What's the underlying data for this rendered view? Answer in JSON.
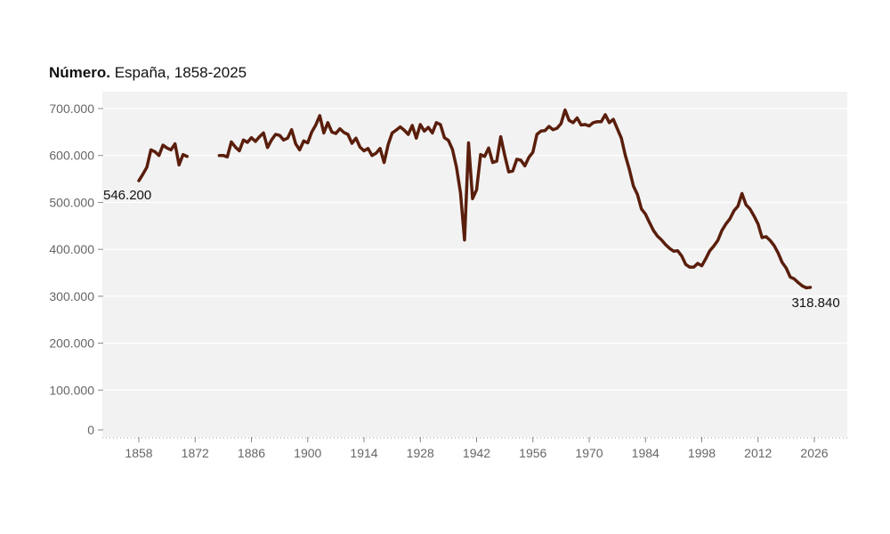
{
  "title": {
    "bold": "Número.",
    "rest": "España, 1858-2025"
  },
  "chart_data": {
    "type": "line",
    "title": "Número. España, 1858-2025",
    "xlabel": "",
    "ylabel": "",
    "xlim": [
      1850,
      2030
    ],
    "ylim": [
      0,
      720000
    ],
    "x_ticks": [
      1858,
      1872,
      1886,
      1900,
      1914,
      1928,
      1942,
      1956,
      1970,
      1984,
      1998,
      2012,
      2026
    ],
    "y_ticks": [
      {
        "value": 0,
        "label": "0"
      },
      {
        "value": 100000,
        "label": "100.000"
      },
      {
        "value": 200000,
        "label": "200.000"
      },
      {
        "value": 300000,
        "label": "300.000"
      },
      {
        "value": 400000,
        "label": "400.000"
      },
      {
        "value": 500000,
        "label": "500.000"
      },
      {
        "value": 600000,
        "label": "600.000"
      },
      {
        "value": 700000,
        "label": "700.000"
      }
    ],
    "grid": true,
    "line_color": "#5a1e0c",
    "background": "#f2f2f2",
    "start_label": "546.200",
    "end_label": "318.840",
    "segments": [
      [
        [
          1858,
          546200
        ],
        [
          1859,
          560000
        ],
        [
          1860,
          575000
        ],
        [
          1861,
          612000
        ],
        [
          1862,
          608000
        ],
        [
          1863,
          600000
        ],
        [
          1864,
          622000
        ],
        [
          1865,
          616000
        ],
        [
          1866,
          612000
        ],
        [
          1867,
          625000
        ],
        [
          1868,
          580000
        ],
        [
          1869,
          602000
        ],
        [
          1870,
          598000
        ]
      ],
      [
        [
          1878,
          600000
        ],
        [
          1879,
          600000
        ],
        [
          1880,
          597000
        ],
        [
          1881,
          629000
        ],
        [
          1882,
          618000
        ],
        [
          1883,
          610000
        ],
        [
          1884,
          633000
        ],
        [
          1885,
          628000
        ],
        [
          1886,
          638000
        ],
        [
          1887,
          630000
        ],
        [
          1888,
          640000
        ],
        [
          1889,
          648000
        ],
        [
          1890,
          617000
        ],
        [
          1891,
          633000
        ],
        [
          1892,
          645000
        ],
        [
          1893,
          643000
        ],
        [
          1894,
          633000
        ],
        [
          1895,
          637000
        ],
        [
          1896,
          655000
        ],
        [
          1897,
          625000
        ],
        [
          1898,
          612000
        ],
        [
          1899,
          631000
        ],
        [
          1900,
          627000
        ],
        [
          1901,
          650000
        ],
        [
          1902,
          665000
        ],
        [
          1903,
          685000
        ],
        [
          1904,
          648000
        ],
        [
          1905,
          670000
        ],
        [
          1906,
          650000
        ],
        [
          1907,
          647000
        ],
        [
          1908,
          657000
        ],
        [
          1909,
          649000
        ],
        [
          1910,
          645000
        ],
        [
          1911,
          626000
        ],
        [
          1912,
          637000
        ],
        [
          1913,
          618000
        ],
        [
          1914,
          610000
        ],
        [
          1915,
          615000
        ],
        [
          1916,
          600000
        ],
        [
          1917,
          605000
        ],
        [
          1918,
          615000
        ],
        [
          1919,
          585000
        ],
        [
          1920,
          623000
        ],
        [
          1921,
          648000
        ],
        [
          1922,
          654000
        ],
        [
          1923,
          661000
        ],
        [
          1924,
          654000
        ],
        [
          1925,
          645000
        ],
        [
          1926,
          664000
        ],
        [
          1927,
          637000
        ],
        [
          1928,
          666000
        ],
        [
          1929,
          652000
        ],
        [
          1930,
          660000
        ],
        [
          1931,
          648000
        ],
        [
          1932,
          670000
        ],
        [
          1933,
          666000
        ],
        [
          1934,
          638000
        ],
        [
          1935,
          632000
        ],
        [
          1936,
          613000
        ],
        [
          1937,
          575000
        ],
        [
          1938,
          520000
        ],
        [
          1939,
          420000
        ],
        [
          1940,
          627000
        ],
        [
          1941,
          508000
        ],
        [
          1942,
          527000
        ],
        [
          1943,
          602000
        ],
        [
          1944,
          598000
        ],
        [
          1945,
          616000
        ],
        [
          1946,
          585000
        ],
        [
          1947,
          588000
        ],
        [
          1948,
          640000
        ],
        [
          1949,
          600000
        ],
        [
          1950,
          565000
        ],
        [
          1951,
          567000
        ],
        [
          1952,
          592000
        ],
        [
          1953,
          590000
        ],
        [
          1954,
          578000
        ],
        [
          1955,
          596000
        ],
        [
          1956,
          607000
        ],
        [
          1957,
          645000
        ],
        [
          1958,
          652000
        ],
        [
          1959,
          653000
        ],
        [
          1960,
          662000
        ],
        [
          1961,
          655000
        ],
        [
          1962,
          658000
        ],
        [
          1963,
          668000
        ],
        [
          1964,
          697000
        ],
        [
          1965,
          675000
        ],
        [
          1966,
          670000
        ],
        [
          1967,
          680000
        ],
        [
          1968,
          665000
        ],
        [
          1969,
          666000
        ],
        [
          1970,
          663000
        ],
        [
          1971,
          670000
        ],
        [
          1972,
          672000
        ],
        [
          1973,
          672000
        ],
        [
          1974,
          687000
        ],
        [
          1975,
          670000
        ],
        [
          1976,
          677000
        ],
        [
          1977,
          657000
        ],
        [
          1978,
          637000
        ],
        [
          1979,
          600000
        ],
        [
          1980,
          570000
        ],
        [
          1981,
          535000
        ],
        [
          1982,
          517000
        ],
        [
          1983,
          486000
        ],
        [
          1984,
          475000
        ],
        [
          1985,
          457000
        ],
        [
          1986,
          440000
        ],
        [
          1987,
          428000
        ],
        [
          1988,
          420000
        ],
        [
          1989,
          410000
        ],
        [
          1990,
          402000
        ],
        [
          1991,
          396000
        ],
        [
          1992,
          397000
        ],
        [
          1993,
          386000
        ],
        [
          1994,
          368000
        ],
        [
          1995,
          362000
        ],
        [
          1996,
          362000
        ],
        [
          1997,
          370000
        ],
        [
          1998,
          365000
        ],
        [
          1999,
          380000
        ],
        [
          2000,
          397000
        ],
        [
          2001,
          407000
        ],
        [
          2002,
          419000
        ],
        [
          2003,
          440000
        ],
        [
          2004,
          454000
        ],
        [
          2005,
          465000
        ],
        [
          2006,
          482000
        ],
        [
          2007,
          492000
        ],
        [
          2008,
          519000
        ],
        [
          2009,
          495000
        ],
        [
          2010,
          486000
        ],
        [
          2011,
          471000
        ],
        [
          2012,
          454000
        ],
        [
          2013,
          425000
        ],
        [
          2014,
          427000
        ],
        [
          2015,
          419000
        ],
        [
          2016,
          408000
        ],
        [
          2017,
          392000
        ],
        [
          2018,
          372000
        ],
        [
          2019,
          360000
        ],
        [
          2020,
          341000
        ],
        [
          2021,
          337000
        ],
        [
          2022,
          329000
        ],
        [
          2023,
          322000
        ],
        [
          2024,
          318000
        ],
        [
          2025,
          318840
        ]
      ]
    ]
  }
}
